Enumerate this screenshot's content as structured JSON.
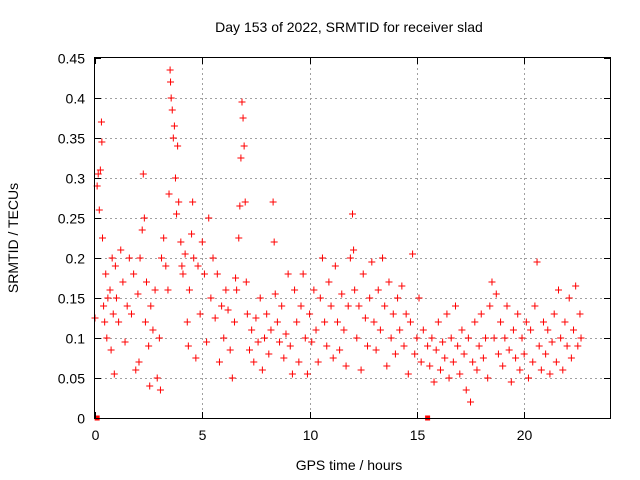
{
  "chart_data": {
    "type": "scatter",
    "title": "Day 153 of 2022, SRMTID for receiver slad",
    "xlabel": "GPS time / hours",
    "ylabel": "SRMTID / TECUs",
    "xlim": [
      0,
      24
    ],
    "ylim": [
      0,
      0.45
    ],
    "x_ticks": [
      0,
      5,
      10,
      15,
      20
    ],
    "x_tick_labels": [
      "0",
      "5",
      "10",
      "15",
      "20"
    ],
    "y_ticks": [
      0,
      0.05,
      0.1,
      0.15,
      0.2,
      0.25,
      0.3,
      0.35,
      0.4,
      0.45
    ],
    "y_tick_labels": [
      "0",
      "0.05",
      "0.1",
      "0.15",
      "0.2",
      "0.25",
      "0.3",
      "0.35",
      "0.4",
      "0.45"
    ],
    "grid": true,
    "marker": "plus",
    "series_color": "#ff0000",
    "zero_markers_x": [
      0.1,
      15.5
    ],
    "series": [
      {
        "name": "SRMTID",
        "points": [
          [
            0.0,
            0.125
          ],
          [
            0.1,
            0.29
          ],
          [
            0.15,
            0.305
          ],
          [
            0.2,
            0.26
          ],
          [
            0.25,
            0.31
          ],
          [
            0.3,
            0.37
          ],
          [
            0.32,
            0.345
          ],
          [
            0.35,
            0.225
          ],
          [
            0.4,
            0.14
          ],
          [
            0.45,
            0.12
          ],
          [
            0.5,
            0.18
          ],
          [
            0.55,
            0.1
          ],
          [
            0.6,
            0.15
          ],
          [
            0.7,
            0.16
          ],
          [
            0.75,
            0.085
          ],
          [
            0.8,
            0.2
          ],
          [
            0.85,
            0.13
          ],
          [
            0.9,
            0.055
          ],
          [
            0.95,
            0.19
          ],
          [
            1.0,
            0.15
          ],
          [
            1.1,
            0.12
          ],
          [
            1.2,
            0.21
          ],
          [
            1.3,
            0.17
          ],
          [
            1.4,
            0.095
          ],
          [
            1.5,
            0.14
          ],
          [
            1.6,
            0.2
          ],
          [
            1.7,
            0.13
          ],
          [
            1.8,
            0.18
          ],
          [
            1.9,
            0.06
          ],
          [
            2.0,
            0.155
          ],
          [
            2.05,
            0.07
          ],
          [
            2.1,
            0.2
          ],
          [
            2.2,
            0.235
          ],
          [
            2.25,
            0.305
          ],
          [
            2.3,
            0.25
          ],
          [
            2.35,
            0.12
          ],
          [
            2.4,
            0.17
          ],
          [
            2.5,
            0.09
          ],
          [
            2.55,
            0.04
          ],
          [
            2.6,
            0.14
          ],
          [
            2.7,
            0.11
          ],
          [
            2.8,
            0.16
          ],
          [
            2.9,
            0.05
          ],
          [
            3.0,
            0.1
          ],
          [
            3.05,
            0.035
          ],
          [
            3.1,
            0.2
          ],
          [
            3.2,
            0.225
          ],
          [
            3.3,
            0.19
          ],
          [
            3.4,
            0.16
          ],
          [
            3.45,
            0.28
          ],
          [
            3.5,
            0.435
          ],
          [
            3.52,
            0.42
          ],
          [
            3.55,
            0.4
          ],
          [
            3.6,
            0.385
          ],
          [
            3.65,
            0.35
          ],
          [
            3.7,
            0.365
          ],
          [
            3.75,
            0.3
          ],
          [
            3.8,
            0.255
          ],
          [
            3.85,
            0.34
          ],
          [
            3.9,
            0.27
          ],
          [
            4.0,
            0.22
          ],
          [
            4.05,
            0.19
          ],
          [
            4.1,
            0.18
          ],
          [
            4.2,
            0.205
          ],
          [
            4.3,
            0.12
          ],
          [
            4.35,
            0.09
          ],
          [
            4.4,
            0.16
          ],
          [
            4.5,
            0.23
          ],
          [
            4.55,
            0.27
          ],
          [
            4.6,
            0.2
          ],
          [
            4.7,
            0.075
          ],
          [
            4.8,
            0.19
          ],
          [
            4.9,
            0.13
          ],
          [
            5.0,
            0.22
          ],
          [
            5.1,
            0.18
          ],
          [
            5.2,
            0.095
          ],
          [
            5.3,
            0.25
          ],
          [
            5.4,
            0.15
          ],
          [
            5.5,
            0.2
          ],
          [
            5.6,
            0.125
          ],
          [
            5.7,
            0.18
          ],
          [
            5.8,
            0.07
          ],
          [
            5.9,
            0.14
          ],
          [
            6.0,
            0.1
          ],
          [
            6.1,
            0.16
          ],
          [
            6.2,
            0.135
          ],
          [
            6.3,
            0.085
          ],
          [
            6.4,
            0.05
          ],
          [
            6.5,
            0.12
          ],
          [
            6.55,
            0.175
          ],
          [
            6.6,
            0.16
          ],
          [
            6.7,
            0.225
          ],
          [
            6.75,
            0.265
          ],
          [
            6.8,
            0.325
          ],
          [
            6.85,
            0.395
          ],
          [
            6.9,
            0.375
          ],
          [
            6.95,
            0.34
          ],
          [
            7.0,
            0.27
          ],
          [
            7.05,
            0.17
          ],
          [
            7.1,
            0.13
          ],
          [
            7.2,
            0.085
          ],
          [
            7.3,
            0.11
          ],
          [
            7.4,
            0.07
          ],
          [
            7.5,
            0.125
          ],
          [
            7.6,
            0.095
          ],
          [
            7.7,
            0.15
          ],
          [
            7.8,
            0.06
          ],
          [
            7.9,
            0.1
          ],
          [
            8.0,
            0.13
          ],
          [
            8.1,
            0.08
          ],
          [
            8.2,
            0.11
          ],
          [
            8.3,
            0.27
          ],
          [
            8.35,
            0.22
          ],
          [
            8.4,
            0.155
          ],
          [
            8.5,
            0.12
          ],
          [
            8.6,
            0.095
          ],
          [
            8.7,
            0.14
          ],
          [
            8.8,
            0.075
          ],
          [
            8.9,
            0.105
          ],
          [
            9.0,
            0.18
          ],
          [
            9.1,
            0.09
          ],
          [
            9.2,
            0.055
          ],
          [
            9.3,
            0.16
          ],
          [
            9.4,
            0.12
          ],
          [
            9.5,
            0.07
          ],
          [
            9.6,
            0.14
          ],
          [
            9.7,
            0.18
          ],
          [
            9.8,
            0.1
          ],
          [
            9.9,
            0.055
          ],
          [
            10.0,
            0.13
          ],
          [
            10.1,
            0.095
          ],
          [
            10.2,
            0.16
          ],
          [
            10.3,
            0.11
          ],
          [
            10.4,
            0.07
          ],
          [
            10.5,
            0.15
          ],
          [
            10.6,
            0.2
          ],
          [
            10.7,
            0.12
          ],
          [
            10.8,
            0.09
          ],
          [
            10.9,
            0.17
          ],
          [
            11.0,
            0.14
          ],
          [
            11.1,
            0.075
          ],
          [
            11.2,
            0.19
          ],
          [
            11.3,
            0.12
          ],
          [
            11.4,
            0.085
          ],
          [
            11.5,
            0.155
          ],
          [
            11.6,
            0.11
          ],
          [
            11.7,
            0.065
          ],
          [
            11.8,
            0.14
          ],
          [
            11.9,
            0.2
          ],
          [
            12.0,
            0.255
          ],
          [
            12.05,
            0.21
          ],
          [
            12.1,
            0.16
          ],
          [
            12.2,
            0.1
          ],
          [
            12.3,
            0.14
          ],
          [
            12.4,
            0.06
          ],
          [
            12.5,
            0.18
          ],
          [
            12.6,
            0.125
          ],
          [
            12.7,
            0.09
          ],
          [
            12.8,
            0.15
          ],
          [
            12.9,
            0.195
          ],
          [
            13.0,
            0.12
          ],
          [
            13.1,
            0.085
          ],
          [
            13.2,
            0.16
          ],
          [
            13.3,
            0.11
          ],
          [
            13.4,
            0.2
          ],
          [
            13.5,
            0.14
          ],
          [
            13.6,
            0.065
          ],
          [
            13.7,
            0.17
          ],
          [
            13.8,
            0.1
          ],
          [
            13.9,
            0.13
          ],
          [
            14.0,
            0.08
          ],
          [
            14.1,
            0.15
          ],
          [
            14.2,
            0.11
          ],
          [
            14.3,
            0.165
          ],
          [
            14.4,
            0.09
          ],
          [
            14.5,
            0.13
          ],
          [
            14.6,
            0.055
          ],
          [
            14.7,
            0.12
          ],
          [
            14.8,
            0.205
          ],
          [
            14.9,
            0.08
          ],
          [
            15.0,
            0.1
          ],
          [
            15.1,
            0.15
          ],
          [
            15.2,
            0.07
          ],
          [
            15.3,
            0.11
          ],
          [
            15.5,
            0.09
          ],
          [
            15.6,
            0.065
          ],
          [
            15.7,
            0.1
          ],
          [
            15.8,
            0.045
          ],
          [
            15.9,
            0.085
          ],
          [
            16.0,
            0.12
          ],
          [
            16.1,
            0.06
          ],
          [
            16.2,
            0.095
          ],
          [
            16.3,
            0.075
          ],
          [
            16.4,
            0.13
          ],
          [
            16.5,
            0.05
          ],
          [
            16.6,
            0.1
          ],
          [
            16.7,
            0.07
          ],
          [
            16.8,
            0.14
          ],
          [
            16.9,
            0.09
          ],
          [
            17.0,
            0.055
          ],
          [
            17.1,
            0.11
          ],
          [
            17.2,
            0.08
          ],
          [
            17.3,
            0.035
          ],
          [
            17.4,
            0.1
          ],
          [
            17.5,
            0.02
          ],
          [
            17.6,
            0.07
          ],
          [
            17.7,
            0.12
          ],
          [
            17.8,
            0.06
          ],
          [
            17.9,
            0.09
          ],
          [
            18.0,
            0.13
          ],
          [
            18.1,
            0.075
          ],
          [
            18.2,
            0.1
          ],
          [
            18.3,
            0.05
          ],
          [
            18.4,
            0.14
          ],
          [
            18.5,
            0.17
          ],
          [
            18.6,
            0.1
          ],
          [
            18.7,
            0.155
          ],
          [
            18.8,
            0.08
          ],
          [
            18.9,
            0.12
          ],
          [
            19.0,
            0.065
          ],
          [
            19.1,
            0.1
          ],
          [
            19.2,
            0.14
          ],
          [
            19.3,
            0.085
          ],
          [
            19.4,
            0.045
          ],
          [
            19.5,
            0.11
          ],
          [
            19.6,
            0.075
          ],
          [
            19.7,
            0.13
          ],
          [
            19.8,
            0.06
          ],
          [
            19.9,
            0.1
          ],
          [
            20.0,
            0.08
          ],
          [
            20.1,
            0.12
          ],
          [
            20.2,
            0.05
          ],
          [
            20.3,
            0.11
          ],
          [
            20.4,
            0.07
          ],
          [
            20.5,
            0.14
          ],
          [
            20.6,
            0.195
          ],
          [
            20.7,
            0.09
          ],
          [
            20.8,
            0.06
          ],
          [
            20.9,
            0.12
          ],
          [
            21.0,
            0.08
          ],
          [
            21.1,
            0.11
          ],
          [
            21.2,
            0.055
          ],
          [
            21.3,
            0.095
          ],
          [
            21.4,
            0.13
          ],
          [
            21.5,
            0.07
          ],
          [
            21.6,
            0.16
          ],
          [
            21.7,
            0.1
          ],
          [
            21.8,
            0.06
          ],
          [
            21.9,
            0.12
          ],
          [
            22.0,
            0.09
          ],
          [
            22.1,
            0.15
          ],
          [
            22.2,
            0.075
          ],
          [
            22.3,
            0.11
          ],
          [
            22.4,
            0.165
          ],
          [
            22.5,
            0.09
          ],
          [
            22.6,
            0.13
          ],
          [
            22.65,
            0.1
          ]
        ]
      }
    ]
  }
}
